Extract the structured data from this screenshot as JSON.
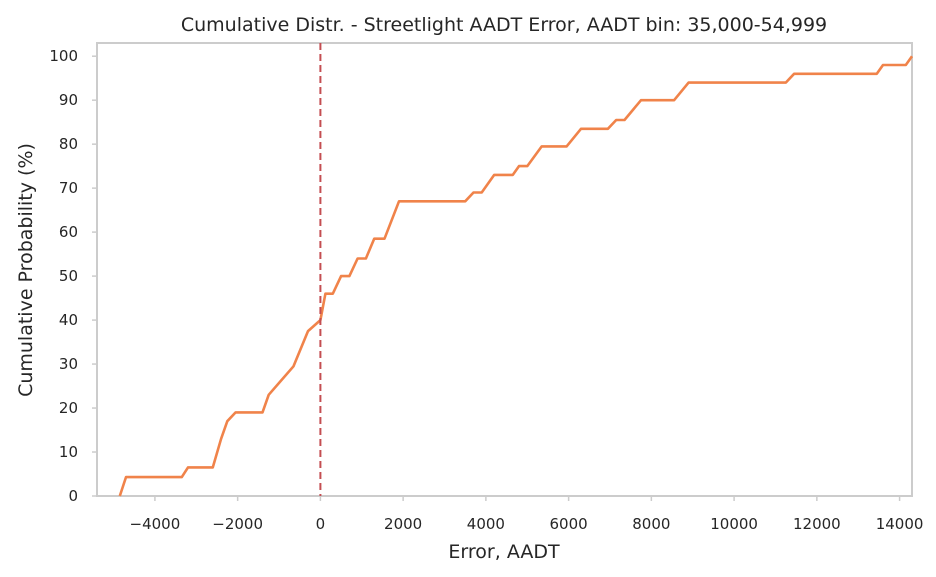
{
  "chart_data": {
    "type": "line",
    "title": "Cumulative Distr. - Streetlight AADT Error, AADT bin: 35,000-54,999",
    "xlabel": "Error, AADT",
    "ylabel": "Cumulative Probability (%)",
    "xlim": [
      -5400,
      14300
    ],
    "ylim": [
      0,
      103
    ],
    "xticks": [
      -4000,
      -2000,
      0,
      2000,
      4000,
      6000,
      8000,
      10000,
      12000,
      14000
    ],
    "xtick_labels": [
      "−4000",
      "−2000",
      "0",
      "2000",
      "4000",
      "6000",
      "8000",
      "10000",
      "12000",
      "14000"
    ],
    "yticks": [
      0,
      10,
      20,
      30,
      40,
      50,
      60,
      70,
      80,
      90,
      100
    ],
    "ytick_labels": [
      "0",
      "10",
      "20",
      "30",
      "40",
      "50",
      "60",
      "70",
      "80",
      "90",
      "100"
    ],
    "grid": false,
    "reference_line": {
      "x": 0,
      "color": "#c44e52",
      "style": "dashed"
    },
    "series": [
      {
        "color": "#f0834a",
        "x": [
          -4850,
          -4700,
          -3350,
          -3200,
          -2600,
          -2400,
          -2250,
          -2050,
          -1400,
          -1250,
          -650,
          -300,
          0,
          120,
          300,
          500,
          700,
          900,
          1100,
          1300,
          1550,
          1900,
          3500,
          3700,
          3900,
          4200,
          4650,
          4800,
          5000,
          5350,
          5950,
          6300,
          6950,
          7150,
          7350,
          7750,
          8550,
          8900,
          11250,
          11450,
          13450,
          13600,
          14150,
          14300
        ],
        "y": [
          0,
          4.3,
          4.3,
          6.5,
          6.5,
          13,
          17,
          19,
          19,
          23,
          29.5,
          37.5,
          40,
          46,
          46,
          50,
          50,
          54,
          54,
          58.5,
          58.5,
          67,
          67,
          69,
          69,
          73,
          73,
          75,
          75,
          79.5,
          79.5,
          83.5,
          83.5,
          85.5,
          85.5,
          90,
          90,
          94,
          94,
          96,
          96,
          98,
          98,
          100
        ]
      }
    ]
  }
}
